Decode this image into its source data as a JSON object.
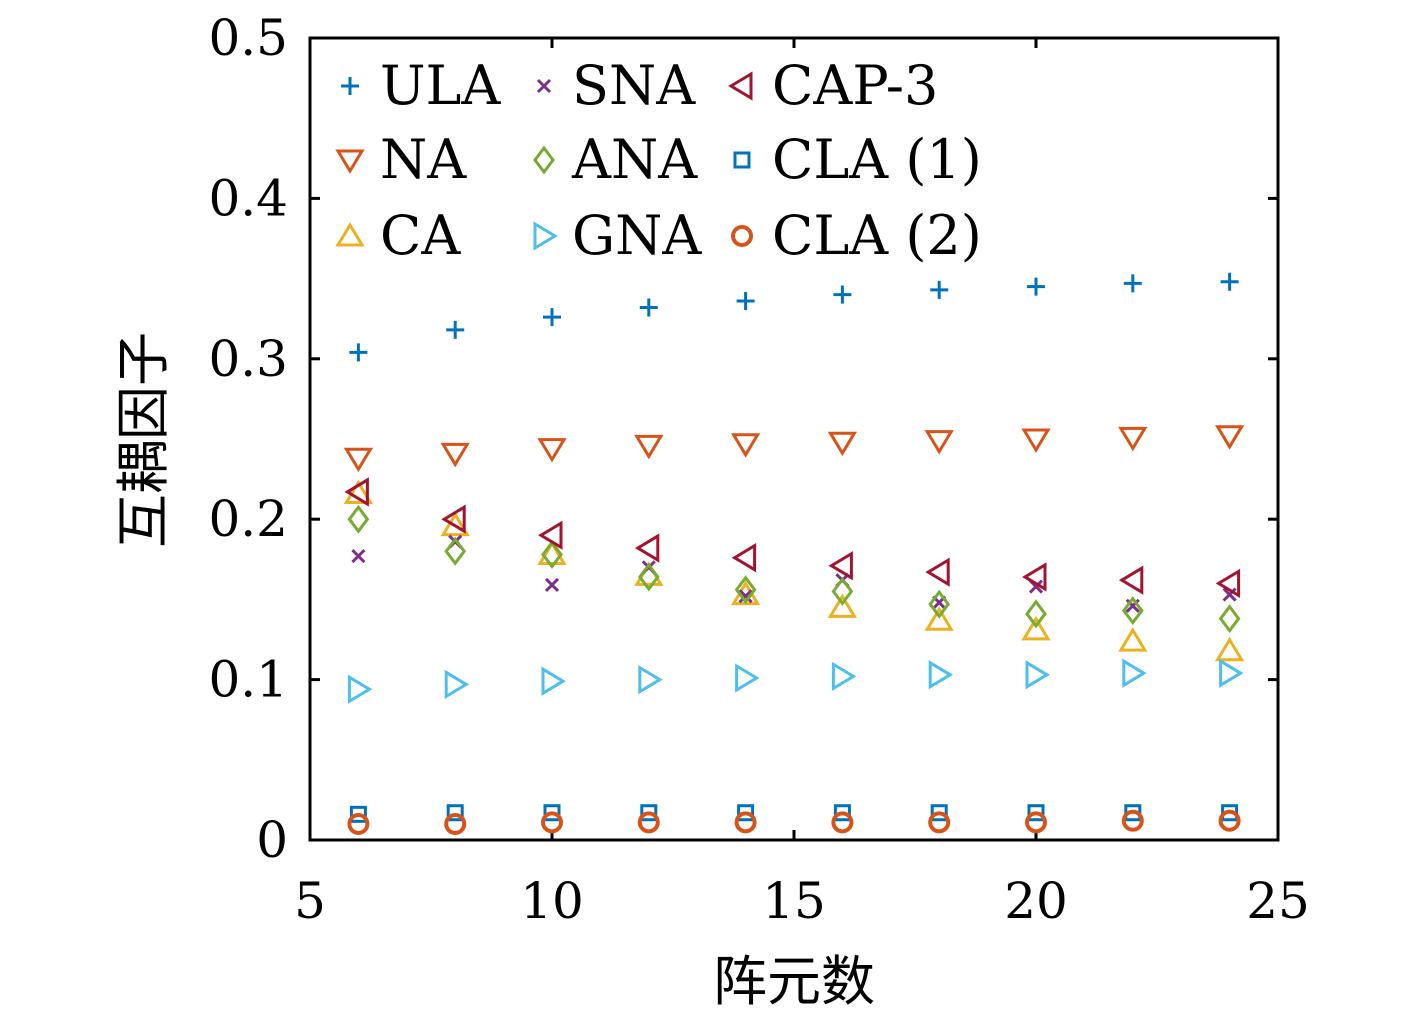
{
  "chart_data": {
    "type": "scatter",
    "title": "",
    "xlabel": "阵元数",
    "ylabel": "互耦因子",
    "xlim": [
      5,
      25
    ],
    "ylim": [
      0,
      0.5
    ],
    "xticks": [
      5,
      10,
      15,
      20,
      25
    ],
    "xtick_labels": [
      "5",
      "10",
      "15",
      "20",
      "25"
    ],
    "yticks": [
      0,
      0.1,
      0.2,
      0.3,
      0.4,
      0.5
    ],
    "ytick_labels": [
      "0",
      "0.1",
      "0.2",
      "0.3",
      "0.4",
      "0.5"
    ],
    "grid": false,
    "legend_position": "top-left, 3 columns",
    "x": [
      6,
      8,
      10,
      12,
      14,
      16,
      18,
      20,
      22,
      24
    ],
    "series": [
      {
        "name": "ULA",
        "marker": "plus",
        "color": "#0072bd",
        "values": [
          0.304,
          0.318,
          0.326,
          0.332,
          0.336,
          0.34,
          0.343,
          0.345,
          0.347,
          0.348
        ]
      },
      {
        "name": "NA",
        "marker": "triangle-down",
        "color": "#d95319",
        "values": [
          0.238,
          0.241,
          0.244,
          0.246,
          0.247,
          0.248,
          0.249,
          0.25,
          0.251,
          0.252
        ]
      },
      {
        "name": "CA",
        "marker": "triangle-up",
        "color": "#edb120",
        "values": [
          0.216,
          0.196,
          0.178,
          0.165,
          0.153,
          0.145,
          0.137,
          0.131,
          0.124,
          0.118
        ]
      },
      {
        "name": "SNA",
        "marker": "x",
        "color": "#7e2f8e",
        "values": [
          0.177,
          0.186,
          0.159,
          0.17,
          0.152,
          0.162,
          0.148,
          0.158,
          0.146,
          0.153
        ]
      },
      {
        "name": "ANA",
        "marker": "diamond",
        "color": "#77ac30",
        "values": [
          0.2,
          0.18,
          0.178,
          0.164,
          0.156,
          0.155,
          0.147,
          0.141,
          0.143,
          0.138
        ]
      },
      {
        "name": "GNA",
        "marker": "triangle-right",
        "color": "#4dbeee",
        "values": [
          0.094,
          0.097,
          0.099,
          0.1,
          0.101,
          0.102,
          0.103,
          0.103,
          0.104,
          0.104
        ]
      },
      {
        "name": "CAP-3",
        "marker": "triangle-left",
        "color": "#a2142f",
        "values": [
          0.217,
          0.2,
          0.19,
          0.182,
          0.176,
          0.171,
          0.167,
          0.164,
          0.162,
          0.16
        ]
      },
      {
        "name": "CLA (1)",
        "marker": "square",
        "color": "#0072bd",
        "values": [
          0.016,
          0.017,
          0.017,
          0.017,
          0.017,
          0.017,
          0.017,
          0.017,
          0.017,
          0.017
        ]
      },
      {
        "name": "CLA (2)",
        "marker": "circle",
        "color": "#d95319",
        "values": [
          0.01,
          0.01,
          0.011,
          0.011,
          0.011,
          0.011,
          0.011,
          0.011,
          0.012,
          0.012
        ]
      }
    ]
  }
}
